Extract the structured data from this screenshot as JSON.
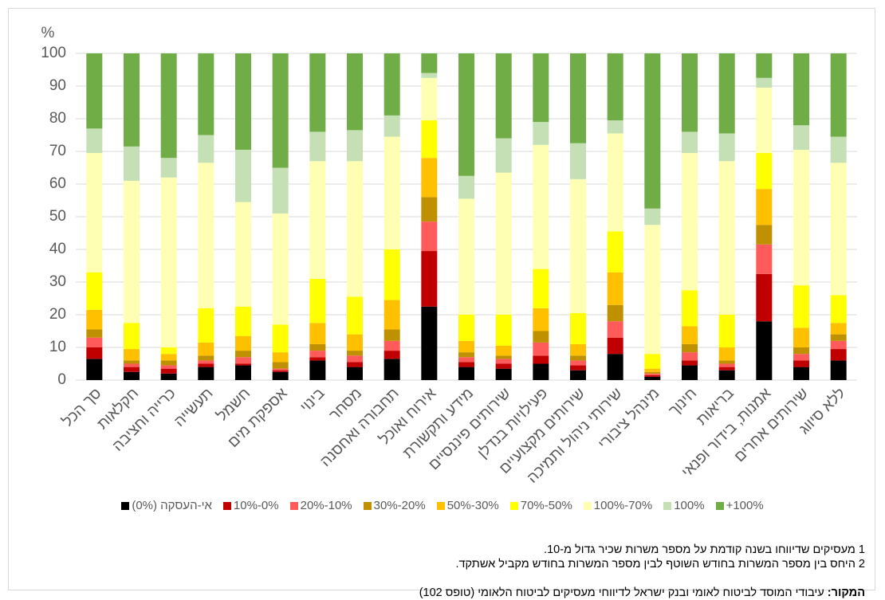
{
  "chart_data": {
    "type": "stacked_bar",
    "y_label": "%",
    "categories": [
      "סך הכל",
      "חקלאות",
      "כרייה וחציבה",
      "תעשייה",
      "חשמל",
      "אספקת מים",
      "בינוי",
      "מסחר",
      "תחבורה ואחסנה",
      "אירוח ואוכל",
      "מידע ותקשורת",
      "שירותים פיננסיים",
      "פעילויות בנדלן",
      "שירותים מקצועיים",
      "שירותי ניהול ותמיכה",
      "מינהל ציבורי",
      "חינוך",
      "בריאות",
      "אמנות, בידור ופנאי",
      "שירותים אחרים",
      "ללא סיווג"
    ],
    "series": [
      {
        "name": "אי-העסקה (0%)",
        "color": "#000000",
        "values": [
          6.5,
          2.5,
          2,
          4,
          4.5,
          2.5,
          6,
          4,
          6.5,
          22.5,
          4,
          3.5,
          5,
          3,
          8,
          1,
          4.5,
          3,
          18,
          4,
          6
        ]
      },
      {
        "name": "10%-0%",
        "color": "#c00000",
        "values": [
          3.5,
          1.5,
          1.5,
          1,
          0.5,
          0.5,
          1,
          1.5,
          2.5,
          17,
          1.5,
          1.5,
          2.5,
          1.5,
          5,
          0.5,
          1.5,
          1,
          14.5,
          2,
          3.5
        ]
      },
      {
        "name": "20%-10%",
        "color": "#ff5b5b",
        "values": [
          3,
          1,
          1,
          1,
          2,
          0.5,
          2,
          2,
          3,
          9,
          1.5,
          1.5,
          4,
          1.5,
          5,
          0.5,
          2.5,
          1,
          9,
          2,
          2.5
        ]
      },
      {
        "name": "30%-20%",
        "color": "#bf9000",
        "values": [
          2.5,
          1,
          1.5,
          1.5,
          2,
          2,
          2,
          1.5,
          3.5,
          7.5,
          1.5,
          1,
          3.5,
          1.5,
          5,
          0.5,
          2.5,
          1,
          6,
          2,
          2
        ]
      },
      {
        "name": "50%-30%",
        "color": "#ffc000",
        "values": [
          6,
          3.5,
          2,
          4,
          4.5,
          3,
          6.5,
          5,
          9,
          12,
          3.5,
          3,
          7,
          3.5,
          10,
          1,
          5.5,
          4,
          11,
          6,
          3.5
        ]
      },
      {
        "name": "70%-50%",
        "color": "#ffff00",
        "values": [
          11.5,
          8,
          2,
          10.5,
          9,
          8.5,
          13.5,
          11.5,
          15.5,
          11.5,
          8,
          9.5,
          12,
          9.5,
          12.5,
          4.5,
          11,
          10,
          11,
          13,
          8.5
        ]
      },
      {
        "name": "100%-70%",
        "color": "#ffffb3",
        "values": [
          36.5,
          43.5,
          52,
          44.5,
          32,
          34,
          36,
          41.5,
          34.5,
          13,
          35.5,
          43.5,
          38,
          41,
          30,
          39.5,
          42,
          47,
          20,
          41.5,
          40.5
        ]
      },
      {
        "name": "100%",
        "color": "#c5e0b4",
        "values": [
          7.5,
          10.5,
          6,
          8.5,
          16,
          14,
          9,
          9.5,
          6.5,
          1.5,
          7,
          10.5,
          7,
          11,
          4,
          5,
          6.5,
          8.5,
          3,
          7.5,
          8
        ]
      },
      {
        "name": "+100%",
        "color": "#70ad47",
        "values": [
          23,
          28.5,
          32,
          25,
          29.5,
          35,
          24,
          23.5,
          19,
          6,
          37.5,
          26,
          21,
          27.5,
          20.5,
          47.5,
          24,
          24.5,
          7.5,
          22,
          25.5
        ]
      }
    ],
    "ylim": [
      0,
      100
    ],
    "yticks": [
      0,
      10,
      20,
      30,
      40,
      50,
      60,
      70,
      80,
      90,
      100
    ],
    "grid": true,
    "notes": [
      "1 מעסיקים שדיווחו בשנה קודמת על מספר משרות שכיר גדול מ-10.",
      "2 היחס בין מספר המשרות בחודש השוטף לבין מספר המשרות בחודש מקביל אשתקד."
    ],
    "source_label": "המקור:",
    "source": "עיבודי המוסד לביטוח לאומי ובנק ישראל לדיווחי מעסיקים לביטוח הלאומי (טופס 102)"
  }
}
